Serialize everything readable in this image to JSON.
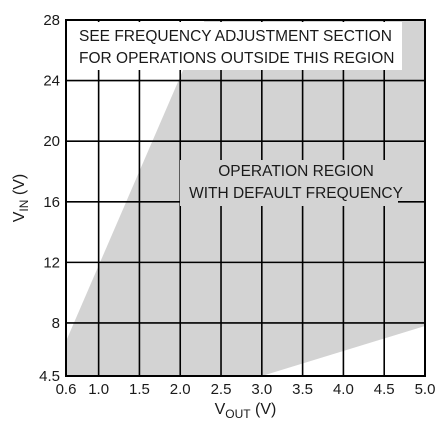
{
  "chart_data": {
    "type": "area",
    "title": "",
    "xlabel": {
      "main": "V",
      "sub": "OUT",
      "unit": " (V)"
    },
    "ylabel": {
      "main": "V",
      "sub": "IN",
      "unit": " (V)"
    },
    "xlim": [
      0.6,
      5.0
    ],
    "ylim": [
      4.5,
      28
    ],
    "x_ticks": [
      0.6,
      1.0,
      1.5,
      2.0,
      2.5,
      3.0,
      3.5,
      4.0,
      4.5,
      5.0
    ],
    "x_tick_labels": [
      "0.6",
      "1.0",
      "1.5",
      "2.0",
      "2.5",
      "3.0",
      "3.5",
      "4.0",
      "4.5",
      "5.0"
    ],
    "y_ticks": [
      4.5,
      8,
      12,
      16,
      20,
      24,
      28
    ],
    "y_tick_labels": [
      "4.5",
      "8",
      "12",
      "16",
      "20",
      "24",
      "28"
    ],
    "grid": true,
    "region": {
      "name": "OPERATION REGION WITH DEFAULT FREQUENCY",
      "color": "#d3d3d3",
      "boundary": [
        {
          "x": 0.6,
          "y": 4.5
        },
        {
          "x": 0.6,
          "y": 6.8
        },
        {
          "x": 2.3,
          "y": 28
        },
        {
          "x": 5.0,
          "y": 28
        },
        {
          "x": 5.0,
          "y": 7.8
        },
        {
          "x": 3.0,
          "y": 4.5
        }
      ]
    },
    "annotations": [
      {
        "id": "outside-note",
        "lines": [
          "SEE FREQUENCY ADJUSTMENT SECTION",
          "FOR OPERATIONS OUTSIDE THIS REGION"
        ]
      },
      {
        "id": "region-label",
        "lines": [
          "OPERATION REGION",
          "WITH DEFAULT FREQUENCY"
        ]
      }
    ]
  }
}
